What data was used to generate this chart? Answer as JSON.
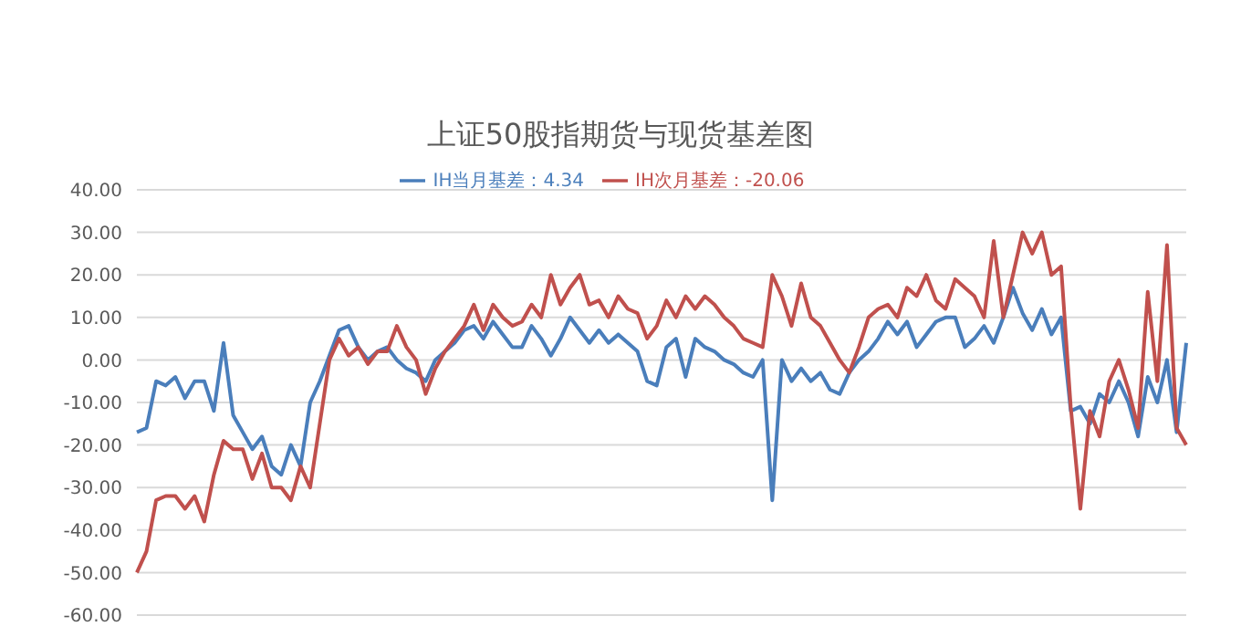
{
  "chart_data": {
    "type": "line",
    "title": "上证50股指期货与现货基差图",
    "categories": [
      null,
      null,
      null,
      null,
      null,
      null,
      null,
      null,
      null,
      null,
      null,
      null,
      null,
      null,
      null,
      null,
      null,
      null,
      null,
      null,
      null,
      null,
      null,
      null,
      null,
      null,
      null,
      null,
      null,
      null,
      null,
      null,
      null,
      null,
      null,
      null,
      null,
      null,
      null,
      null,
      null,
      null,
      null,
      null,
      null,
      null,
      null,
      null,
      null,
      null,
      null,
      null,
      null,
      null,
      null,
      null,
      null,
      null,
      null,
      null,
      null,
      null,
      null,
      null,
      null,
      null,
      null,
      null,
      null,
      null,
      null,
      null,
      null,
      null,
      null,
      null,
      null,
      null,
      null,
      null,
      null,
      null,
      null,
      null,
      null,
      null,
      null,
      null,
      null,
      null,
      null,
      null,
      null,
      null,
      null,
      null,
      null,
      null,
      null,
      null,
      null,
      null,
      null,
      null,
      null,
      null,
      null,
      null,
      null,
      null
    ],
    "series": [
      {
        "name": "IH当月基差：4.34",
        "color": "#4a7ebb",
        "values": [
          -17,
          -16,
          -5,
          -6,
          -4,
          -9,
          -5,
          -5,
          -12,
          4,
          -13,
          -17,
          -21,
          -18,
          -25,
          -27,
          -20,
          -25,
          -10,
          -5,
          1,
          7,
          8,
          3,
          0,
          2,
          3,
          0,
          -2,
          -3,
          -5,
          0,
          2,
          4,
          7,
          8,
          5,
          9,
          6,
          3,
          3,
          8,
          5,
          1,
          5,
          10,
          7,
          4,
          7,
          4,
          6,
          4,
          2,
          -5,
          -6,
          3,
          5,
          -4,
          5,
          3,
          2,
          0,
          -1,
          -3,
          -4,
          0,
          -33,
          0,
          -5,
          -2,
          -5,
          -3,
          -7,
          -8,
          -3,
          0,
          2,
          5,
          9,
          6,
          9,
          3,
          6,
          9,
          10,
          10,
          3,
          5,
          8,
          4,
          10,
          17,
          11,
          7,
          12,
          6,
          10,
          -12,
          -11,
          -15,
          -8,
          -10,
          -5,
          -10,
          -18,
          -4,
          -10,
          0,
          -17,
          4
        ]
      },
      {
        "name": "IH次月基差：-20.06",
        "color": "#c0504d",
        "values": [
          -50,
          -45,
          -33,
          -32,
          -32,
          -35,
          -32,
          -38,
          -27,
          -19,
          -21,
          -21,
          -28,
          -22,
          -30,
          -30,
          -33,
          -25,
          -30,
          -15,
          0,
          5,
          1,
          3,
          -1,
          2,
          2,
          8,
          3,
          0,
          -8,
          -2,
          2,
          5,
          8,
          13,
          7,
          13,
          10,
          8,
          9,
          13,
          10,
          20,
          13,
          17,
          20,
          13,
          14,
          10,
          15,
          12,
          11,
          5,
          8,
          14,
          10,
          15,
          12,
          15,
          13,
          10,
          8,
          5,
          4,
          3,
          20,
          15,
          8,
          18,
          10,
          8,
          4,
          0,
          -3,
          3,
          10,
          12,
          13,
          10,
          17,
          15,
          20,
          14,
          12,
          19,
          17,
          15,
          10,
          28,
          10,
          20,
          30,
          25,
          30,
          20,
          22,
          -11,
          -35,
          -12,
          -18,
          -5,
          0,
          -7,
          -16,
          16,
          -5,
          27,
          -16,
          -20
        ]
      }
    ],
    "ylim": [
      -60,
      40
    ],
    "yticks": [
      {
        "value": -60,
        "label": "-60.00"
      },
      {
        "value": -50,
        "label": "-50.00"
      },
      {
        "value": -40,
        "label": "-40.00"
      },
      {
        "value": -30,
        "label": "-30.00"
      },
      {
        "value": -20,
        "label": "-20.00"
      },
      {
        "value": -10,
        "label": "-10.00"
      },
      {
        "value": 0,
        "label": "0.00"
      },
      {
        "value": 10,
        "label": "10.00"
      },
      {
        "value": 20,
        "label": "20.00"
      },
      {
        "value": 30,
        "label": "30.00"
      },
      {
        "value": 40,
        "label": "40.00"
      }
    ],
    "grid": "y",
    "legend": "top",
    "marker": "none",
    "line_style": "solid",
    "tick_labels": "y"
  }
}
